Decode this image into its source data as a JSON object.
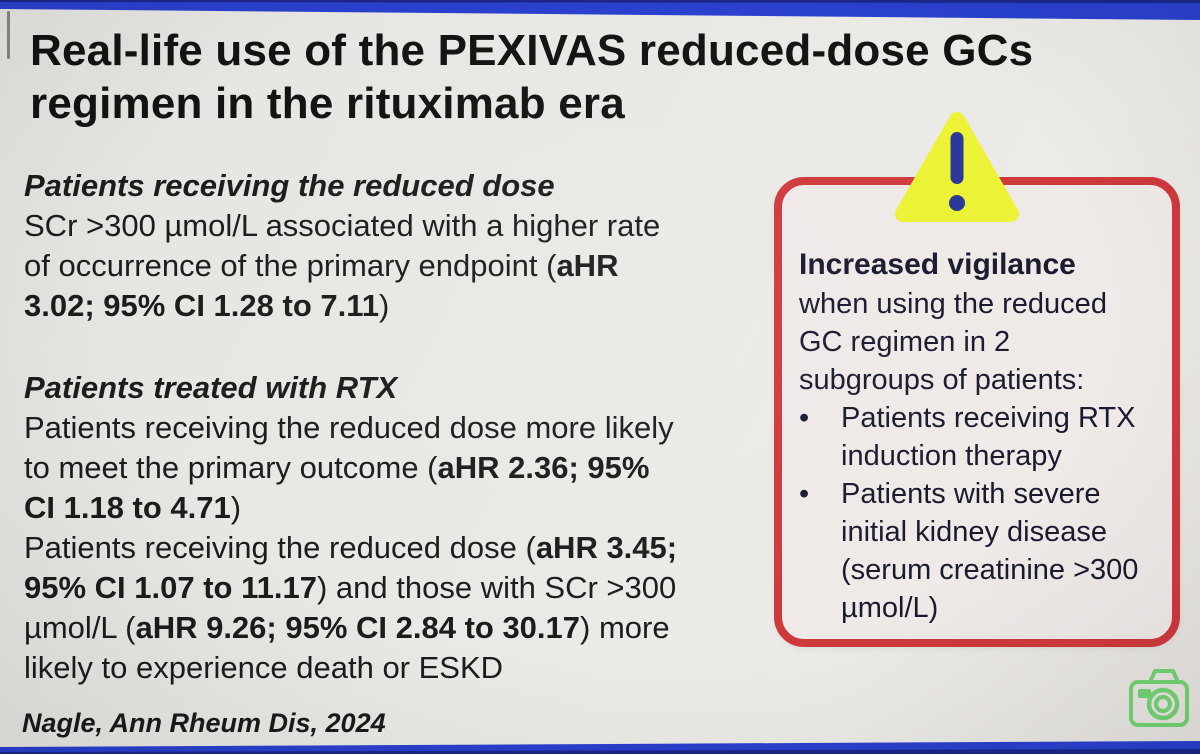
{
  "title": {
    "lines": [
      "Real-life use of the PEXIVAS reduced-dose GCs",
      "regimen in the rituximab era"
    ]
  },
  "left_sections": [
    {
      "heading": "Patients receiving the reduced dose",
      "lines": [
        [
          {
            "t": "SCr >300 µmol/L associated with a higher rate"
          }
        ],
        [
          {
            "t": "of occurrence of the primary endpoint ("
          },
          {
            "t": "aHR",
            "b": 1
          }
        ],
        [
          {
            "t": "3.02; 95% CI 1.28 to 7.11",
            "b": 1
          },
          {
            "t": ")"
          }
        ]
      ]
    },
    {
      "heading": "Patients treated with RTX",
      "lines": [
        [
          {
            "t": "Patients receiving the reduced dose more likely"
          }
        ],
        [
          {
            "t": "to meet the primary outcome ("
          },
          {
            "t": "aHR 2.36; 95%",
            "b": 1
          }
        ],
        [
          {
            "t": "CI 1.18 to 4.71",
            "b": 1
          },
          {
            "t": ")"
          }
        ],
        [
          {
            "t": "Patients receiving the reduced dose ("
          },
          {
            "t": "aHR 3.45;",
            "b": 1
          }
        ],
        [
          {
            "t": "95% CI 1.07 to 11.17",
            "b": 1
          },
          {
            "t": ") and those with SCr >300"
          }
        ],
        [
          {
            "t": "µmol/L ("
          },
          {
            "t": "aHR 9.26; 95% CI 2.84 to 30.17",
            "b": 1
          },
          {
            "t": ") more"
          }
        ],
        [
          {
            "t": "likely to experience death or ESKD"
          }
        ]
      ]
    }
  ],
  "callout": {
    "heading": "Increased vigilance",
    "intro_lines": [
      "when using the reduced",
      "GC regimen in 2",
      "subgroups of patients:"
    ],
    "bullet_marker": "•",
    "bullets": [
      {
        "lines": [
          "Patients receiving RTX",
          "induction therapy"
        ]
      },
      {
        "lines": [
          "Patients with severe",
          "initial kidney disease",
          "(serum creatinine >300",
          "µmol/L)"
        ]
      }
    ]
  },
  "footer": {
    "citation": "Nagle, Ann Rheum Dis, 2024"
  },
  "icons": {
    "warning": "warning-triangle-icon",
    "camera": "camera-icon"
  },
  "colors": {
    "accent_blue": "#2940cd",
    "deep_blue": "#1b2688",
    "slide_bg": "#eae8e4",
    "title_ink": "#131313",
    "body_ink": "#1c1c1c",
    "callout_border": "#cf393c",
    "callout_bg": "#efe9e8",
    "callout_ink": "#1a1a2e",
    "warning_yellow": "#ecf235",
    "warning_navy": "#2b3a9a",
    "camera_green": "#74d374"
  }
}
